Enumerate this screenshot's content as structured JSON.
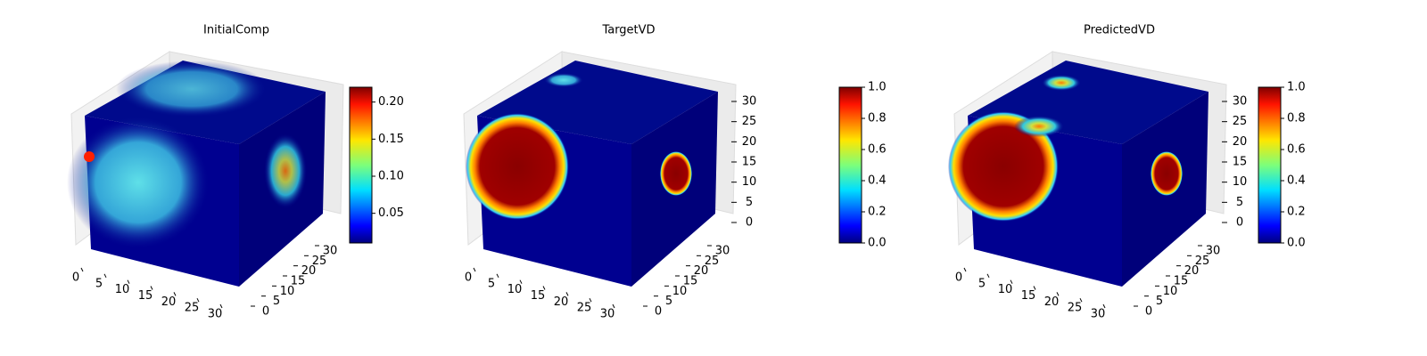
{
  "chart_data": [
    {
      "type": "voxel3d",
      "title": "InitialComp",
      "xlim": [
        0,
        32
      ],
      "xticks": [
        0,
        5,
        10,
        15,
        20,
        25,
        30
      ],
      "ylim": [
        0,
        32
      ],
      "yticks": [
        0,
        5,
        10,
        15,
        20,
        25,
        30
      ],
      "colormap": "jet",
      "clim": [
        0.01,
        0.22
      ],
      "cticks": [
        0.05,
        {
          "value": 0.1,
          "label": "0.10"
        },
        0.15,
        {
          "value": 0.2,
          "label": "0.20"
        }
      ]
    },
    {
      "type": "voxel3d",
      "title": "TargetVD",
      "xlim": [
        0,
        32
      ],
      "xticks": [
        0,
        5,
        10,
        15,
        20,
        25,
        30
      ],
      "ylim": [
        0,
        32
      ],
      "yticks": [
        0,
        5,
        10,
        15,
        20,
        25,
        30
      ],
      "zlim": [
        0,
        32
      ],
      "zticks": [
        0,
        5,
        10,
        15,
        20,
        25,
        30
      ],
      "colormap": "jet",
      "clim": [
        0,
        1
      ],
      "cticks": [
        {
          "value": 0,
          "label": "0.0"
        },
        0.2,
        0.4,
        0.6,
        0.8,
        {
          "value": 1,
          "label": "1.0"
        }
      ]
    },
    {
      "type": "voxel3d",
      "title": "PredictedVD",
      "xlim": [
        0,
        32
      ],
      "xticks": [
        0,
        5,
        10,
        15,
        20,
        25,
        30
      ],
      "ylim": [
        0,
        32
      ],
      "yticks": [
        0,
        5,
        10,
        15,
        20,
        25,
        30
      ],
      "zlim": [
        0,
        32
      ],
      "zticks": [
        0,
        5,
        10,
        15,
        20,
        25,
        30
      ],
      "colormap": "jet",
      "clim": [
        0,
        1
      ],
      "cticks": [
        {
          "value": 0,
          "label": "0.0"
        },
        0.2,
        0.4,
        0.6,
        0.8,
        {
          "value": 1,
          "label": "1.0"
        }
      ]
    }
  ]
}
